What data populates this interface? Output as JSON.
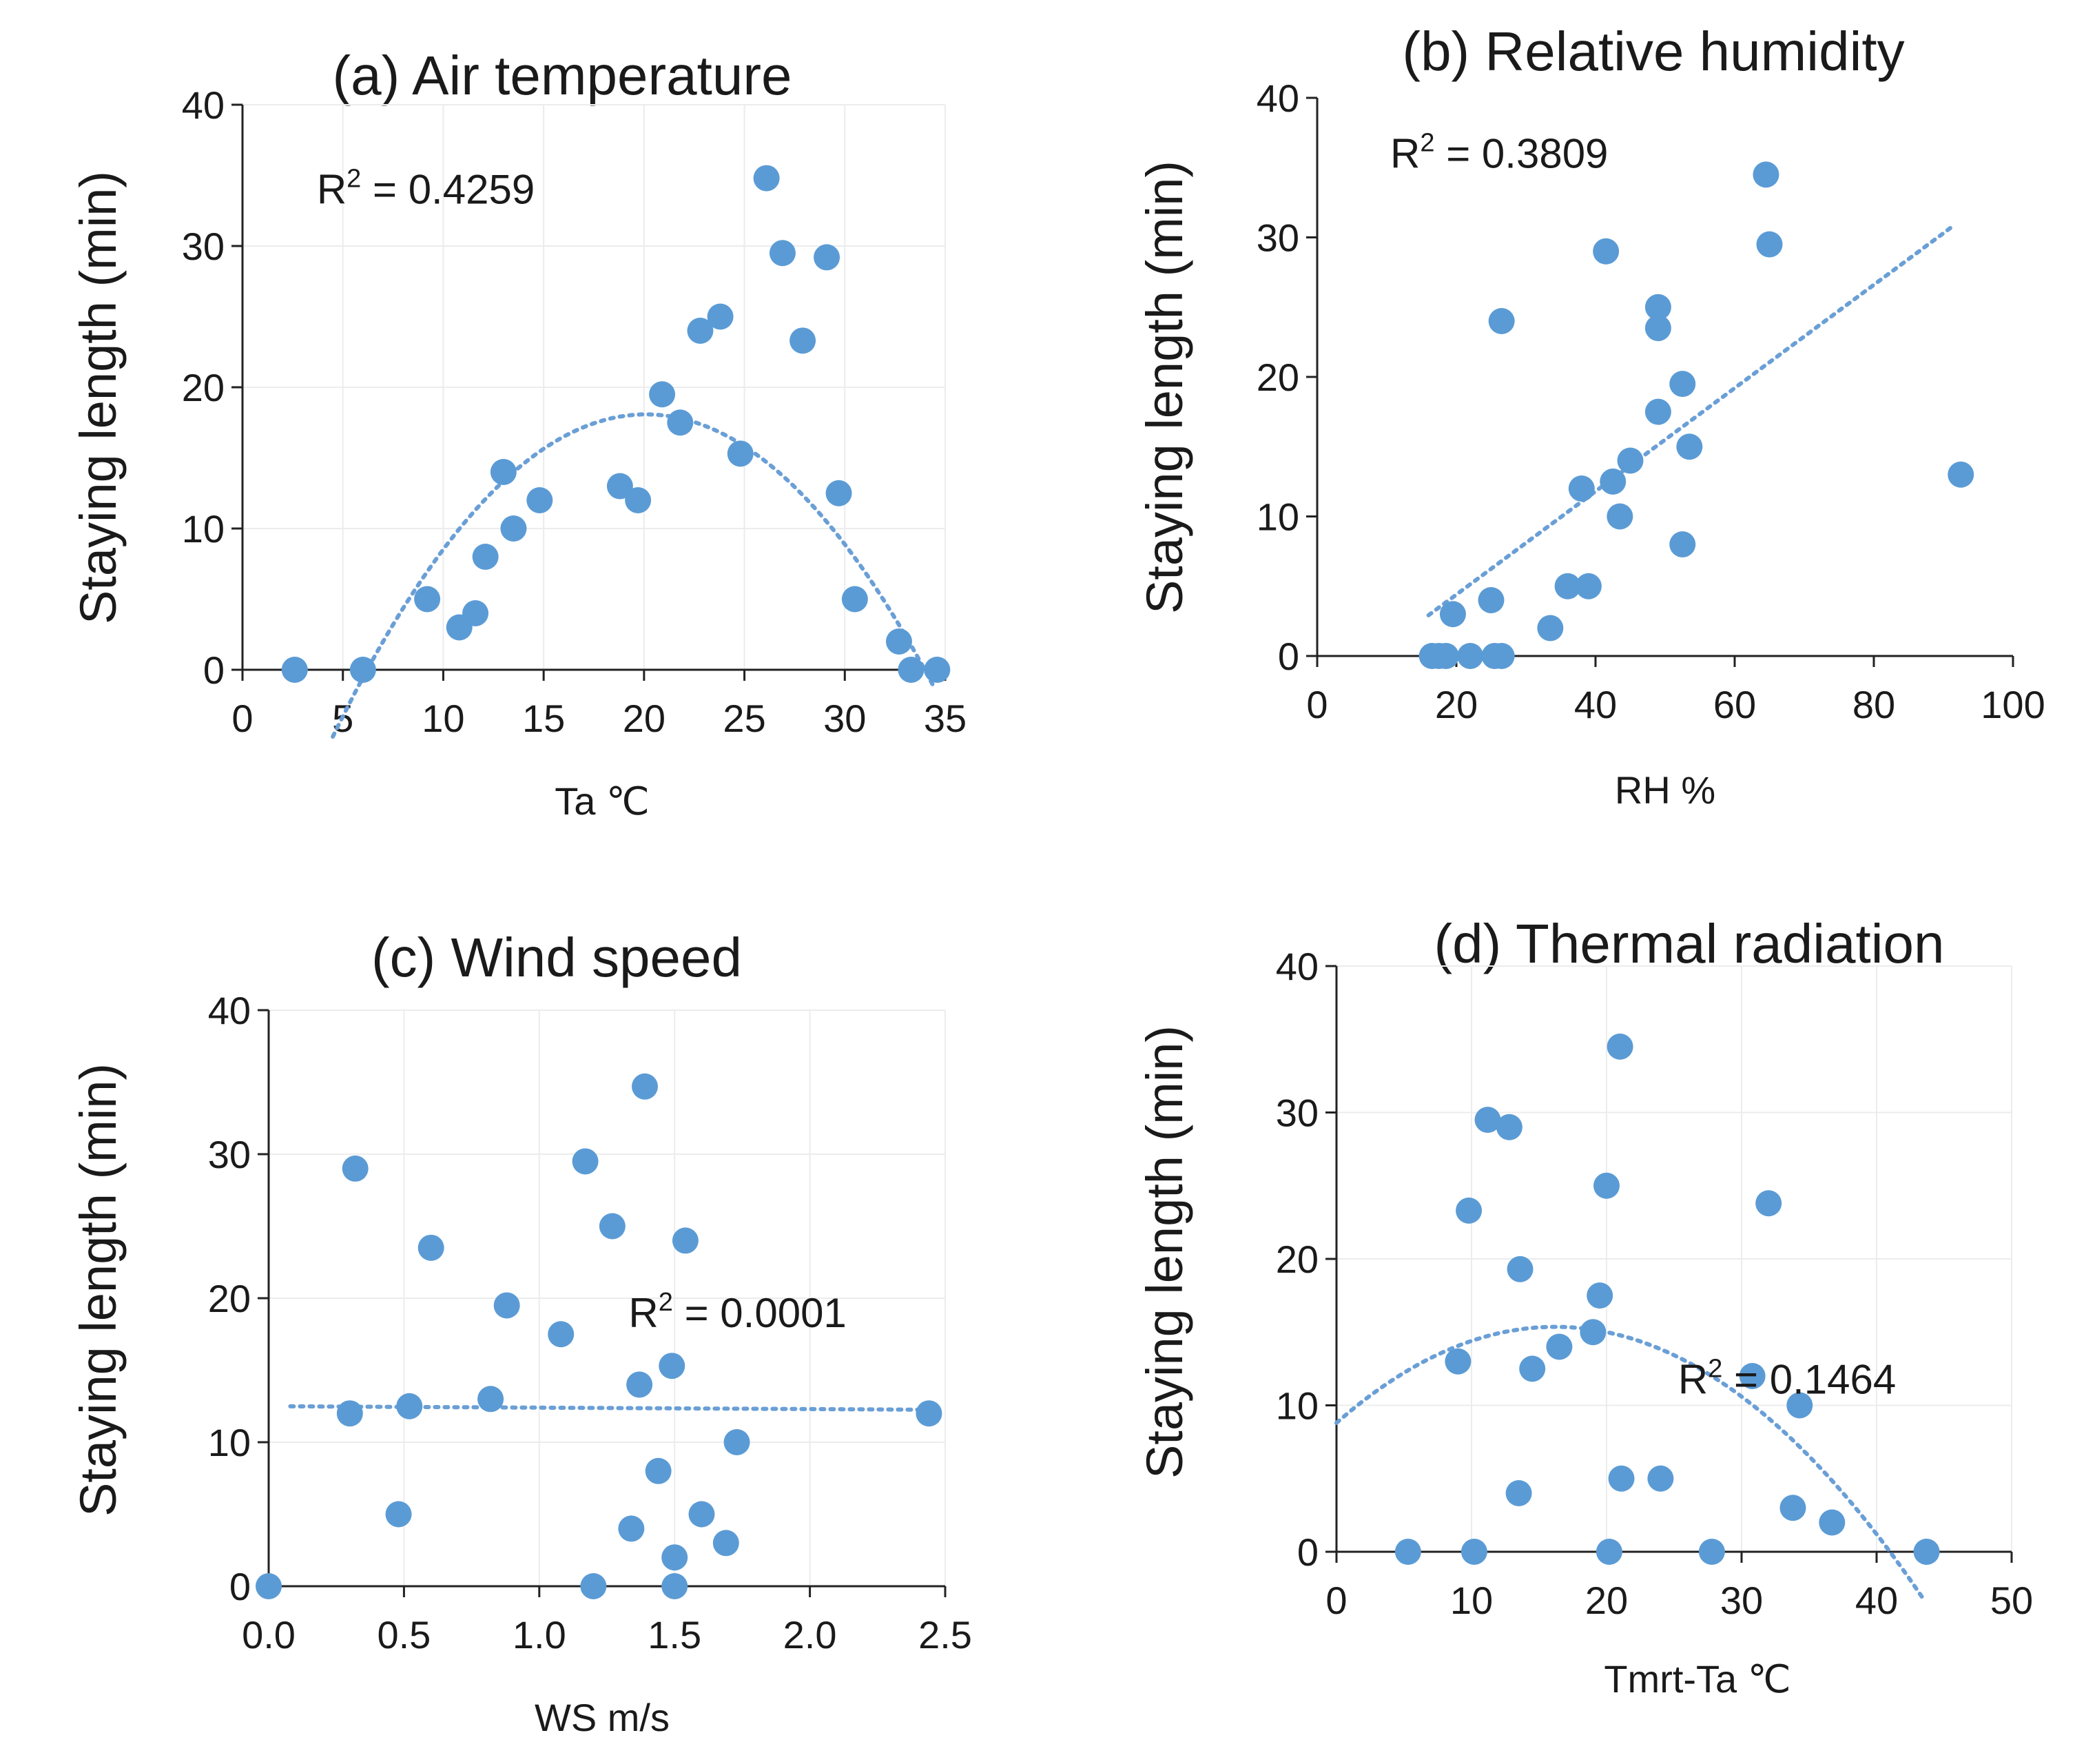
{
  "chart_data": [
    {
      "id": "a",
      "type": "scatter",
      "title": "(a) Air temperature",
      "xlabel": "Ta ℃",
      "ylabel": "Staying length (min)",
      "xlim": [
        0,
        35
      ],
      "ylim": [
        0,
        40
      ],
      "xticks": [
        0,
        5,
        10,
        15,
        20,
        25,
        30,
        35
      ],
      "yticks": [
        0,
        10,
        20,
        30,
        40
      ],
      "tick_labels_x": [
        "0",
        "5",
        "10",
        "15",
        "20",
        "25",
        "30",
        "35"
      ],
      "tick_labels_y": [
        "0",
        "10",
        "20",
        "30",
        "40"
      ],
      "grid": true,
      "r2_label": "R",
      "r2_sup": "2",
      "r2_value": " = 0.4259",
      "r2_pos": [
        3.7,
        33
      ],
      "trend": {
        "type": "poly2",
        "coef": [
          -0.0938,
          3.77,
          -19.8
        ],
        "x_range": [
          4.5,
          34.5
        ]
      },
      "points": [
        [
          2.6,
          0
        ],
        [
          6,
          0
        ],
        [
          9.2,
          5
        ],
        [
          10.8,
          3
        ],
        [
          11.6,
          4
        ],
        [
          12.1,
          8
        ],
        [
          13,
          14
        ],
        [
          13.5,
          10
        ],
        [
          14.8,
          12
        ],
        [
          18.8,
          13
        ],
        [
          19.7,
          12
        ],
        [
          20.9,
          19.5
        ],
        [
          21.8,
          17.5
        ],
        [
          22.8,
          24
        ],
        [
          23.8,
          25
        ],
        [
          24.8,
          15.3
        ],
        [
          26.1,
          34.8
        ],
        [
          26.9,
          29.5
        ],
        [
          27.9,
          23.3
        ],
        [
          29.1,
          29.2
        ],
        [
          29.7,
          12.5
        ],
        [
          30.5,
          5
        ],
        [
          32.7,
          2
        ],
        [
          33.3,
          0
        ],
        [
          34.6,
          0
        ]
      ]
    },
    {
      "id": "b",
      "type": "scatter",
      "title": "(b) Relative humidity",
      "xlabel": "RH %",
      "ylabel": "Staying length (min)",
      "xlim": [
        0,
        100
      ],
      "ylim": [
        0,
        40
      ],
      "xticks": [
        0,
        20,
        40,
        60,
        80,
        100
      ],
      "yticks": [
        0,
        10,
        20,
        30,
        40
      ],
      "tick_labels_x": [
        "0",
        "20",
        "40",
        "60",
        "80",
        "100"
      ],
      "tick_labels_y": [
        "0",
        "10",
        "20",
        "30",
        "40"
      ],
      "grid": false,
      "r2_label": "R",
      "r2_sup": "2",
      "r2_value": " = 0.3809",
      "r2_pos": [
        10.5,
        35
      ],
      "trend": {
        "type": "poly1",
        "coef": [
          0.37,
          -3.0
        ],
        "x_range": [
          16,
          91
        ]
      },
      "points": [
        [
          16.5,
          0
        ],
        [
          17.5,
          0
        ],
        [
          18.5,
          0
        ],
        [
          19.5,
          3
        ],
        [
          22,
          0
        ],
        [
          25,
          4
        ],
        [
          25.5,
          0
        ],
        [
          26.5,
          0
        ],
        [
          26.5,
          24
        ],
        [
          33.5,
          2
        ],
        [
          36,
          5
        ],
        [
          38,
          12
        ],
        [
          39,
          5
        ],
        [
          41.5,
          29
        ],
        [
          42.5,
          12.5
        ],
        [
          43.5,
          10
        ],
        [
          45,
          14
        ],
        [
          49,
          17.5
        ],
        [
          49,
          25
        ],
        [
          49,
          23.5
        ],
        [
          52.5,
          8
        ],
        [
          52.5,
          19.5
        ],
        [
          53.5,
          15
        ],
        [
          64.5,
          34.5
        ],
        [
          65,
          29.5
        ],
        [
          92.5,
          13
        ]
      ]
    },
    {
      "id": "c",
      "type": "scatter",
      "title": "(c) Wind speed",
      "xlabel": "WS m/s",
      "ylabel": "Staying length (min)",
      "xlim": [
        0,
        2.5
      ],
      "ylim": [
        0,
        40
      ],
      "xticks": [
        0,
        0.5,
        1.0,
        1.5,
        2.0,
        2.5
      ],
      "yticks": [
        0,
        10,
        20,
        30,
        40
      ],
      "tick_labels_x": [
        "0.0",
        "0.5",
        "1.0",
        "1.5",
        "2.0",
        "2.5"
      ],
      "tick_labels_y": [
        "0",
        "10",
        "20",
        "30",
        "40"
      ],
      "grid": true,
      "r2_label": "R",
      "r2_sup": "2",
      "r2_value": " = 0.0001",
      "r2_pos": [
        1.33,
        18
      ],
      "trend": {
        "type": "poly1",
        "coef": [
          -0.1,
          12.5
        ],
        "x_range": [
          0.08,
          2.45
        ]
      },
      "points": [
        [
          0.0,
          0
        ],
        [
          0.3,
          12
        ],
        [
          0.32,
          29
        ],
        [
          0.48,
          5
        ],
        [
          0.52,
          12.5
        ],
        [
          0.6,
          23.5
        ],
        [
          0.82,
          13
        ],
        [
          0.88,
          19.5
        ],
        [
          1.08,
          17.5
        ],
        [
          1.17,
          29.5
        ],
        [
          1.2,
          0
        ],
        [
          1.27,
          25
        ],
        [
          1.34,
          4
        ],
        [
          1.37,
          14
        ],
        [
          1.39,
          34.7
        ],
        [
          1.44,
          8
        ],
        [
          1.49,
          15.3
        ],
        [
          1.5,
          0
        ],
        [
          1.5,
          2
        ],
        [
          1.54,
          24
        ],
        [
          1.6,
          5
        ],
        [
          1.69,
          3
        ],
        [
          1.73,
          10
        ],
        [
          2.44,
          12
        ]
      ]
    },
    {
      "id": "d",
      "type": "scatter",
      "title": "(d) Thermal radiation",
      "xlabel": "Tmrt-Ta ℃",
      "ylabel": "Staying length (min)",
      "xlim": [
        0,
        50
      ],
      "ylim": [
        0,
        40
      ],
      "xticks": [
        0,
        10,
        20,
        30,
        40,
        50
      ],
      "yticks": [
        0,
        10,
        20,
        30,
        40
      ],
      "tick_labels_x": [
        "0",
        "10",
        "20",
        "30",
        "40",
        "50"
      ],
      "tick_labels_y": [
        "0",
        "10",
        "20",
        "30",
        "40"
      ],
      "grid": true,
      "r2_label": "R",
      "r2_sup": "2",
      "r2_value": " = 0.1464",
      "r2_pos": [
        25.3,
        10.8
      ],
      "trend": {
        "type": "poly2",
        "coef": [
          -0.025,
          0.81,
          8.8
        ],
        "x_range": [
          0,
          43.5
        ]
      },
      "points": [
        [
          5.3,
          0
        ],
        [
          9,
          13
        ],
        [
          9.8,
          23.3
        ],
        [
          10.2,
          0
        ],
        [
          11.2,
          29.5
        ],
        [
          12.8,
          29
        ],
        [
          13.5,
          4
        ],
        [
          13.6,
          19.3
        ],
        [
          14.5,
          12.5
        ],
        [
          16.5,
          14
        ],
        [
          19,
          15
        ],
        [
          19.5,
          17.5
        ],
        [
          20,
          25
        ],
        [
          20.2,
          0
        ],
        [
          21,
          34.5
        ],
        [
          21.1,
          5
        ],
        [
          24,
          5
        ],
        [
          27.8,
          0
        ],
        [
          30.8,
          12
        ],
        [
          32,
          23.8
        ],
        [
          33.8,
          3
        ],
        [
          34.3,
          10
        ],
        [
          36.7,
          2
        ],
        [
          43.7,
          0
        ]
      ]
    }
  ]
}
